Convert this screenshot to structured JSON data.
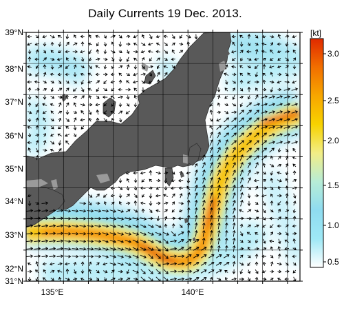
{
  "title": "Daily Currents 19 Dec. 2013.",
  "lat_labels": [
    "39°N",
    "38°N",
    "37°N",
    "36°N",
    "35°N",
    "34°N",
    "33°N",
    "32°N",
    "31°N"
  ],
  "lon_labels": [
    "135°E",
    "140°E"
  ],
  "colorbar": {
    "unit": "[kt]",
    "ticks": [
      "3.0",
      "2.5",
      "2.0",
      "1.5",
      "1.0",
      "0.5"
    ],
    "min": 0.25,
    "max": 3.25,
    "stops": [
      "#ffffff",
      "#9ee8f5",
      "#8fdcf0",
      "#b7ecd6",
      "#f2ee86",
      "#f7d200",
      "#f7a600",
      "#f26f00",
      "#e02a00"
    ]
  },
  "colors": {
    "land": "#595959",
    "lake": "#9a9a9a",
    "ocean_low": "#ffffff",
    "kuroshio_core": "#e54a00",
    "arrow": "#000000"
  },
  "extent": {
    "lon": [
      133.5,
      144.5
    ],
    "lat": [
      31,
      39
    ]
  },
  "grid_lon_step": 1,
  "grid_lat_step": 1
}
